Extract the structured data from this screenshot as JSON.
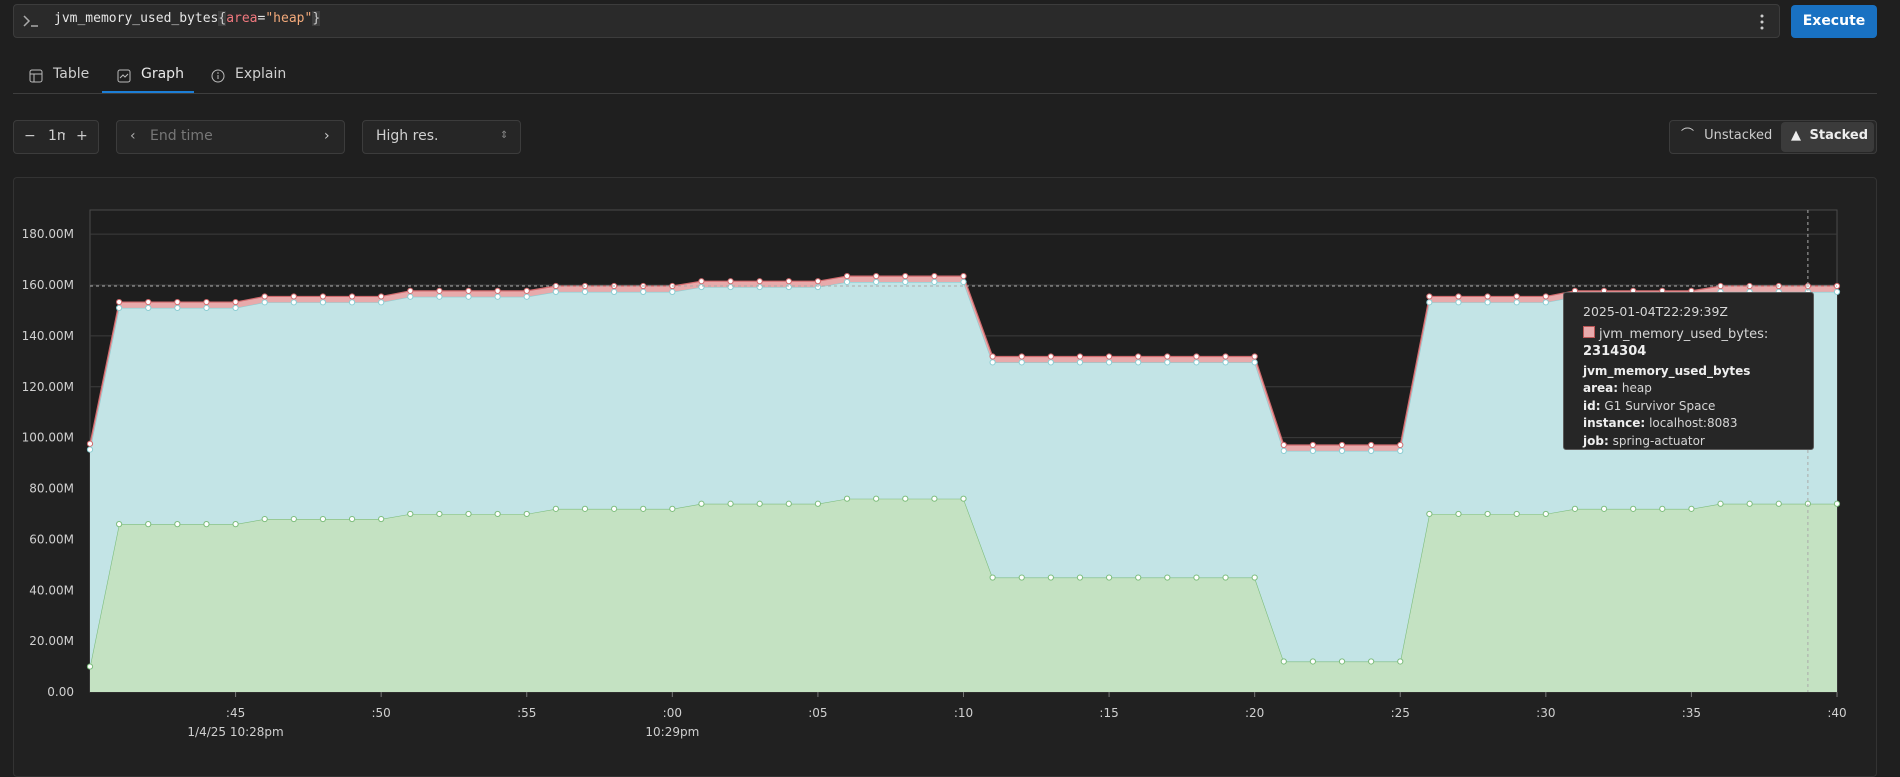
{
  "query": {
    "parts": [
      "jvm_memory_used_bytes",
      "{",
      "area",
      "=",
      "\"heap\"",
      "}"
    ],
    "execute": "Execute"
  },
  "tabs": [
    "Table",
    "Graph",
    "Explain"
  ],
  "controls": {
    "range": "1m",
    "end_time": "End time",
    "resolution": "High res.",
    "unstacked": "Unstacked",
    "stacked": "Stacked"
  },
  "tooltip": {
    "time": "2025-01-04T22:29:39Z",
    "series_label": "jvm_memory_used_bytes:",
    "value": "2314304",
    "metric": "jvm_memory_used_bytes",
    "labels": [
      {
        "key": "area:",
        "value": "heap"
      },
      {
        "key": "id:",
        "value": "G1 Survivor Space"
      },
      {
        "key": "instance:",
        "value": "localhost:8083"
      },
      {
        "key": "job:",
        "value": "spring-actuator"
      }
    ]
  },
  "chart_data": {
    "type": "area",
    "stacked": true,
    "grid": true,
    "x": [
      "2025-01-04T22:28:40Z",
      "2025-01-04T22:28:41Z",
      "2025-01-04T22:28:42Z",
      "2025-01-04T22:28:43Z",
      "2025-01-04T22:28:44Z",
      "2025-01-04T22:28:45Z",
      "2025-01-04T22:28:46Z",
      "2025-01-04T22:28:47Z",
      "2025-01-04T22:28:48Z",
      "2025-01-04T22:28:49Z",
      "2025-01-04T22:28:50Z",
      "2025-01-04T22:28:51Z",
      "2025-01-04T22:28:52Z",
      "2025-01-04T22:28:53Z",
      "2025-01-04T22:28:54Z",
      "2025-01-04T22:28:55Z",
      "2025-01-04T22:28:56Z",
      "2025-01-04T22:28:57Z",
      "2025-01-04T22:28:58Z",
      "2025-01-04T22:28:59Z",
      "2025-01-04T22:29:00Z",
      "2025-01-04T22:29:01Z",
      "2025-01-04T22:29:02Z",
      "2025-01-04T22:29:03Z",
      "2025-01-04T22:29:04Z",
      "2025-01-04T22:29:05Z",
      "2025-01-04T22:29:06Z",
      "2025-01-04T22:29:07Z",
      "2025-01-04T22:29:08Z",
      "2025-01-04T22:29:09Z",
      "2025-01-04T22:29:10Z",
      "2025-01-04T22:29:11Z",
      "2025-01-04T22:29:12Z",
      "2025-01-04T22:29:13Z",
      "2025-01-04T22:29:14Z",
      "2025-01-04T22:29:15Z",
      "2025-01-04T22:29:16Z",
      "2025-01-04T22:29:17Z",
      "2025-01-04T22:29:18Z",
      "2025-01-04T22:29:19Z",
      "2025-01-04T22:29:20Z",
      "2025-01-04T22:29:21Z",
      "2025-01-04T22:29:22Z",
      "2025-01-04T22:29:23Z",
      "2025-01-04T22:29:24Z",
      "2025-01-04T22:29:25Z",
      "2025-01-04T22:29:26Z",
      "2025-01-04T22:29:27Z",
      "2025-01-04T22:29:28Z",
      "2025-01-04T22:29:29Z",
      "2025-01-04T22:29:30Z",
      "2025-01-04T22:29:31Z",
      "2025-01-04T22:29:32Z",
      "2025-01-04T22:29:33Z",
      "2025-01-04T22:29:34Z",
      "2025-01-04T22:29:35Z",
      "2025-01-04T22:29:36Z",
      "2025-01-04T22:29:37Z",
      "2025-01-04T22:29:38Z",
      "2025-01-04T22:29:39Z",
      "2025-01-04T22:29:40Z"
    ],
    "xlim": [
      "2025-01-04T22:28:40Z",
      "2025-01-04T22:29:40Z"
    ],
    "xticks": [
      {
        "value": "2025-01-04T22:28:45Z",
        "label": ":45",
        "sublabel": "1/4/25 10:28pm"
      },
      {
        "value": "2025-01-04T22:28:50Z",
        "label": ":50"
      },
      {
        "value": "2025-01-04T22:28:55Z",
        "label": ":55"
      },
      {
        "value": "2025-01-04T22:29:00Z",
        "label": ":00",
        "sublabel": "10:29pm"
      },
      {
        "value": "2025-01-04T22:29:05Z",
        "label": ":05"
      },
      {
        "value": "2025-01-04T22:29:10Z",
        "label": ":10"
      },
      {
        "value": "2025-01-04T22:29:15Z",
        "label": ":15"
      },
      {
        "value": "2025-01-04T22:29:20Z",
        "label": ":20"
      },
      {
        "value": "2025-01-04T22:29:25Z",
        "label": ":25"
      },
      {
        "value": "2025-01-04T22:29:30Z",
        "label": ":30"
      },
      {
        "value": "2025-01-04T22:29:35Z",
        "label": ":35"
      },
      {
        "value": "2025-01-04T22:29:40Z",
        "label": ":40"
      }
    ],
    "ylim": [
      0,
      189.5
    ],
    "yticks": [
      {
        "value": 0,
        "label": "0.00"
      },
      {
        "value": 20,
        "label": "20.00M"
      },
      {
        "value": 40,
        "label": "40.00M"
      },
      {
        "value": 60,
        "label": "60.00M"
      },
      {
        "value": 80,
        "label": "80.00M"
      },
      {
        "value": 100,
        "label": "100.00M"
      },
      {
        "value": 120,
        "label": "120.00M"
      },
      {
        "value": 140,
        "label": "140.00M"
      },
      {
        "value": 160,
        "label": "160.00M"
      },
      {
        "value": 180,
        "label": "180.00M"
      }
    ],
    "series": [
      {
        "color": "#c4e2c2",
        "line_color": "#7dbd7d",
        "values": [
          10,
          66,
          66,
          66,
          66,
          66,
          68,
          68,
          68,
          68,
          68,
          70,
          70,
          70,
          70,
          70,
          72,
          72,
          72,
          72,
          72,
          74,
          74,
          74,
          74,
          74,
          76,
          76,
          76,
          76,
          76,
          45,
          45,
          45,
          45,
          45,
          45,
          45,
          45,
          45,
          45,
          12,
          12,
          12,
          12,
          12,
          70,
          70,
          70,
          70,
          70,
          72,
          72,
          72,
          72,
          72,
          74,
          74,
          74,
          74,
          74
        ]
      },
      {
        "color": "#c3e4e6",
        "line_color": "#8ccdd2",
        "values": [
          85.3,
          85,
          85,
          85,
          85,
          85,
          85.2,
          85.2,
          85.2,
          85.2,
          85.2,
          85.4,
          85.4,
          85.4,
          85.4,
          85.4,
          85.3,
          85.3,
          85.3,
          85.3,
          85.3,
          85.2,
          85.2,
          85.2,
          85.2,
          85.2,
          85.2,
          85.2,
          85.2,
          85.2,
          85.2,
          84.6,
          84.6,
          84.6,
          84.6,
          84.6,
          84.6,
          84.6,
          84.6,
          84.6,
          84.6,
          82.8,
          82.8,
          82.8,
          82.8,
          82.8,
          83.2,
          83.2,
          83.2,
          83.2,
          83.2,
          83.4,
          83.4,
          83.4,
          83.4,
          83.4,
          83.3,
          83.3,
          83.3,
          83.3,
          83.3
        ]
      },
      {
        "color": "#e8aaab",
        "line_color": "#d26b6e",
        "values": [
          2.314304,
          2.314304,
          2.314304,
          2.314304,
          2.314304,
          2.314304,
          2.314304,
          2.314304,
          2.314304,
          2.314304,
          2.314304,
          2.314304,
          2.314304,
          2.314304,
          2.314304,
          2.314304,
          2.314304,
          2.314304,
          2.314304,
          2.314304,
          2.314304,
          2.314304,
          2.314304,
          2.314304,
          2.314304,
          2.314304,
          2.314304,
          2.314304,
          2.314304,
          2.314304,
          2.314304,
          2.314304,
          2.314304,
          2.314304,
          2.314304,
          2.314304,
          2.314304,
          2.314304,
          2.314304,
          2.314304,
          2.314304,
          2.314304,
          2.314304,
          2.314304,
          2.314304,
          2.314304,
          2.314304,
          2.314304,
          2.314304,
          2.314304,
          2.314304,
          2.314304,
          2.314304,
          2.314304,
          2.314304,
          2.314304,
          2.314304,
          2.314304,
          2.314304,
          2.314304,
          2.314304
        ]
      }
    ]
  }
}
